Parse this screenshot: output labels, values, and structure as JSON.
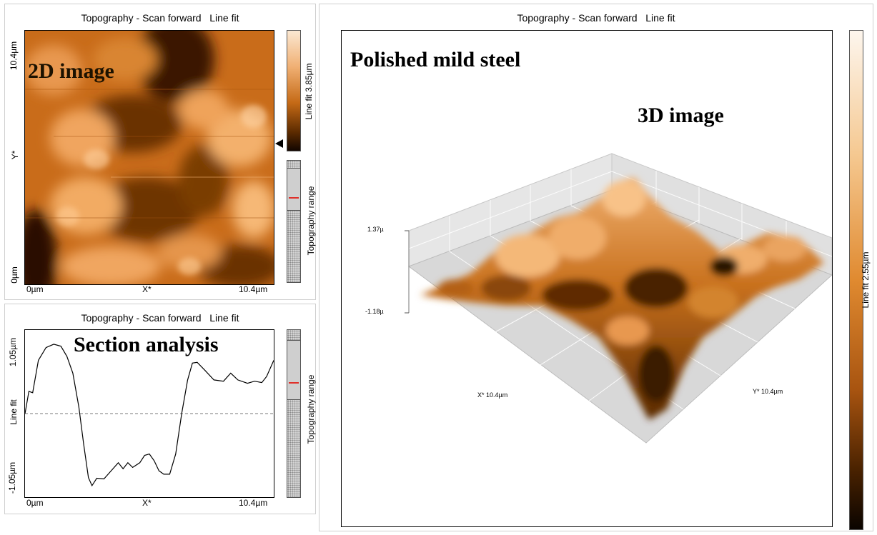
{
  "panel_2d": {
    "title": "Topography - Scan forward   Line fit",
    "overlay_label": "2D image",
    "y_top": "10.4µm",
    "y_mid": "Y*",
    "y_bottom": "0µm",
    "x_left": "0µm",
    "x_mid": "X*",
    "x_right": "10.4µm",
    "colorbar_label": "Line fit 3.85µm",
    "range_label": "Topography range",
    "marker_position": 0.22
  },
  "panel_section": {
    "title": "Topography - Scan forward   Line fit",
    "overlay_label": "Section analysis",
    "y_top": "1.05µm",
    "y_mid": "Line fit",
    "y_bottom": "-1.05µm",
    "x_left": "0µm",
    "x_mid": "X*",
    "x_right": "10.4µm",
    "range_label": "Topography range",
    "ylim": [
      -1.05,
      1.05
    ],
    "profile": [
      [
        0,
        0.0
      ],
      [
        0.16,
        0.33
      ],
      [
        0.32,
        0.31
      ],
      [
        0.56,
        0.79
      ],
      [
        0.88,
        0.98
      ],
      [
        1.2,
        1.03
      ],
      [
        1.5,
        1.0
      ],
      [
        1.75,
        0.85
      ],
      [
        2.0,
        0.6
      ],
      [
        2.25,
        0.1
      ],
      [
        2.45,
        -0.45
      ],
      [
        2.65,
        -0.95
      ],
      [
        2.8,
        -1.07
      ],
      [
        3.0,
        -0.96
      ],
      [
        3.3,
        -0.97
      ],
      [
        3.6,
        -0.85
      ],
      [
        3.9,
        -0.73
      ],
      [
        4.1,
        -0.82
      ],
      [
        4.3,
        -0.73
      ],
      [
        4.5,
        -0.8
      ],
      [
        4.8,
        -0.73
      ],
      [
        5.0,
        -0.62
      ],
      [
        5.2,
        -0.6
      ],
      [
        5.4,
        -0.7
      ],
      [
        5.6,
        -0.85
      ],
      [
        5.8,
        -0.9
      ],
      [
        6.05,
        -0.9
      ],
      [
        6.3,
        -0.6
      ],
      [
        6.55,
        0.0
      ],
      [
        6.8,
        0.5
      ],
      [
        7.0,
        0.75
      ],
      [
        7.2,
        0.76
      ],
      [
        7.5,
        0.65
      ],
      [
        7.9,
        0.5
      ],
      [
        8.3,
        0.48
      ],
      [
        8.6,
        0.6
      ],
      [
        8.9,
        0.5
      ],
      [
        9.3,
        0.45
      ],
      [
        9.6,
        0.48
      ],
      [
        9.9,
        0.46
      ],
      [
        10.1,
        0.55
      ],
      [
        10.4,
        0.79
      ]
    ]
  },
  "panel_3d": {
    "title": "Topography - Scan forward   Line fit",
    "overlay_label_1": "Polished mild steel",
    "overlay_label_2": "3D image",
    "z_top": "1.37µ",
    "z_bottom": "-1.18µ",
    "x_axis": "X* 10.4µm",
    "y_axis": "Y* 10.4µm",
    "colorbar_label": "Line fit 2.55µm"
  },
  "colors": {
    "afm_dark": "#1a0b00",
    "afm_mid": "#c56a16",
    "afm_light": "#fbe8d2",
    "marker_red": "#e0302a"
  }
}
